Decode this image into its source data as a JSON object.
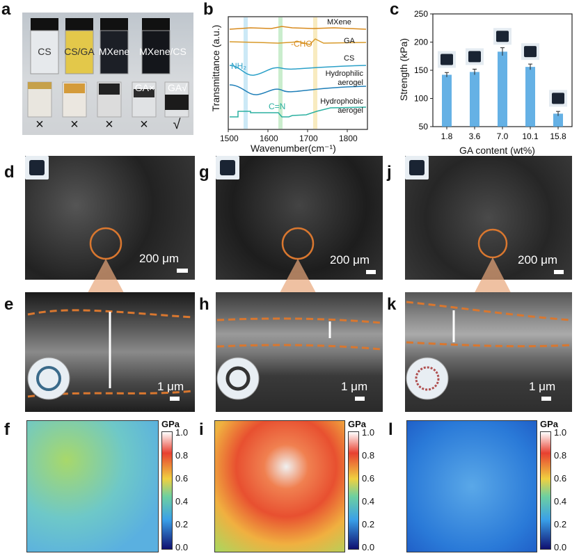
{
  "labels": {
    "a": "a",
    "b": "b",
    "c": "c",
    "d": "d",
    "e": "e",
    "f": "f",
    "g": "g",
    "h": "h",
    "i": "i",
    "j": "j",
    "k": "k",
    "l": "l"
  },
  "panel_a": {
    "vials_top": [
      "CS",
      "CS/GA",
      "MXene",
      "MXene/CS"
    ],
    "vials_bottom_labels": [
      "GA×",
      "GA√"
    ],
    "marks": [
      "×",
      "×",
      "×",
      "×",
      "√"
    ]
  },
  "panel_b": {
    "ylabel": "Transmittance (a.u.)",
    "xlabel": "Wavenumber(cm⁻¹)",
    "xticks": [
      "1500",
      "1600",
      "1700",
      "1800"
    ],
    "traces": [
      "MXene",
      "GA",
      "CS",
      "Hydrophilic aerogel",
      "Hydrophobic aerogel"
    ],
    "annotations": {
      "cho": "-CHO",
      "nh2": "NH₂",
      "cn": "C=N"
    },
    "colors": {
      "mxene": "#d88a1c",
      "ga": "#d89a2a",
      "cs": "#2aa0c8",
      "hydrophilic": "#1f7fb8",
      "hydrophobic": "#2bb0a0"
    }
  },
  "chart_data": {
    "type": "bar",
    "categories": [
      "1.8",
      "3.6",
      "7.0",
      "10.1",
      "15.8"
    ],
    "values": [
      142,
      147,
      183,
      156,
      73
    ],
    "errors": [
      4,
      5,
      7,
      5,
      4
    ],
    "xlabel": "GA content (wt%)",
    "ylabel": "Strength (kPa)",
    "ylim": [
      50,
      250
    ],
    "yticks": [
      "50",
      "100",
      "150",
      "200",
      "250"
    ],
    "bar_color": "#4aa3e0"
  },
  "panel_sem": {
    "scale_200": "200 μm",
    "scale_1": "1 μm"
  },
  "panel_map": {
    "unit": "GPa",
    "ticks": [
      "1.0",
      "0.8",
      "0.6",
      "0.4",
      "0.2",
      "0.0"
    ]
  }
}
